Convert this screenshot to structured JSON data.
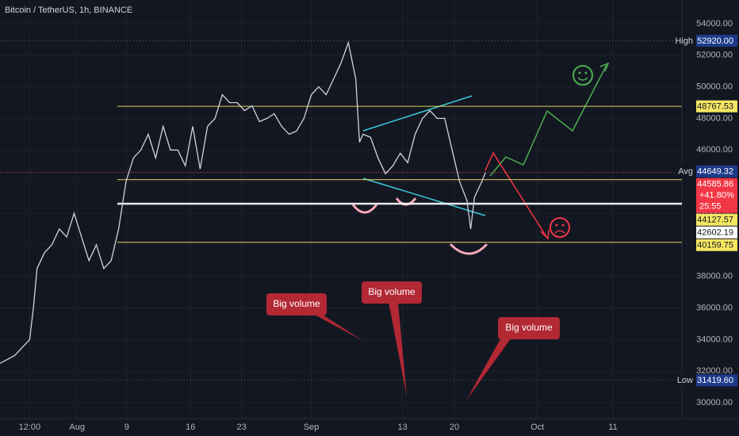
{
  "chart_data": {
    "type": "line",
    "title": "Bitcoin / TetherUS, 1h, BINANCE",
    "color": "#d1d4dc",
    "x": [
      0,
      2,
      3,
      4,
      4.5,
      5,
      6,
      7,
      8,
      9,
      10,
      11,
      12,
      13,
      14,
      15,
      16,
      17,
      18,
      19,
      20,
      21,
      22,
      23,
      24,
      25,
      26,
      27,
      28,
      29,
      30,
      31,
      32,
      33,
      34,
      35,
      36,
      37,
      38,
      39,
      40,
      41,
      42,
      43,
      44,
      45,
      46,
      47,
      48,
      48.5,
      49,
      50,
      51,
      52,
      53,
      54,
      55,
      56,
      57,
      58,
      59,
      60,
      61,
      62,
      63,
      63.5,
      64,
      65,
      65.5
    ],
    "values": [
      32500,
      33000,
      33500,
      34000,
      36000,
      38500,
      39500,
      40000,
      41000,
      40500,
      42000,
      40500,
      39000,
      40000,
      38500,
      39000,
      41000,
      44000,
      45500,
      46000,
      47000,
      45500,
      47500,
      46000,
      46000,
      45000,
      47500,
      44800,
      47500,
      48000,
      49500,
      49000,
      49000,
      48500,
      48800,
      47800,
      48000,
      48300,
      47500,
      47000,
      47200,
      48000,
      49500,
      50000,
      49500,
      50500,
      51500,
      52800,
      50500,
      46500,
      47000,
      46800,
      45500,
      44500,
      45000,
      45800,
      45200,
      47000,
      48000,
      48500,
      48000,
      48000,
      46000,
      44000,
      42800,
      41000,
      43000,
      44000,
      44585.86
    ],
    "xlim": [
      0,
      92
    ],
    "xticks": [
      {
        "value": 4,
        "label": "12:00"
      },
      {
        "value": 10.4,
        "label": "Aug"
      },
      {
        "value": 17.1,
        "label": "9"
      },
      {
        "value": 25.7,
        "label": "16"
      },
      {
        "value": 32.6,
        "label": "23"
      },
      {
        "value": 42,
        "label": "Sep"
      },
      {
        "value": 54.3,
        "label": "13"
      },
      {
        "value": 61.3,
        "label": "20"
      },
      {
        "value": 72.5,
        "label": "Oct"
      },
      {
        "value": 82.7,
        "label": "11"
      }
    ],
    "ylim": [
      29000,
      55500
    ],
    "yticks": [
      {
        "value": 30000,
        "label": "30000.00"
      },
      {
        "value": 32000,
        "label": "32000.00"
      },
      {
        "value": 34000,
        "label": "34000.00"
      },
      {
        "value": 36000,
        "label": "36000.00"
      },
      {
        "value": 38000,
        "label": "38000.00"
      },
      {
        "value": 40000,
        "label": "40000.00"
      },
      {
        "value": 42000,
        "label": "42000.00"
      },
      {
        "value": 44000,
        "label": "44000.00"
      },
      {
        "value": 46000,
        "label": "46000.00"
      },
      {
        "value": 48000,
        "label": "48000.00"
      },
      {
        "value": 50000,
        "label": "50000.00"
      },
      {
        "value": 52000,
        "label": "52000.00"
      },
      {
        "value": 54000,
        "label": "54000.00"
      }
    ],
    "grid": true,
    "high": {
      "tag": "High",
      "value": 52920,
      "label": "52920.00"
    },
    "low": {
      "tag": "Low",
      "value": 31419.6,
      "label": "31419.60"
    },
    "avg": {
      "tag": "Avg",
      "value": 44649.32
    },
    "last": {
      "value": 44585.86,
      "change": "+41.80%",
      "countdown": "25:55",
      "color": "#f23645"
    },
    "levels": [
      {
        "value": 48767.53,
        "color": "#f5e663"
      },
      {
        "value": 44127.57,
        "color": "#f5e663"
      },
      {
        "value": 42602.19,
        "color": "#ffffff"
      },
      {
        "value": 40159.75,
        "color": "#f5e663"
      }
    ],
    "annotations": [
      "Big volume",
      "Big volume",
      "Big volume"
    ]
  }
}
